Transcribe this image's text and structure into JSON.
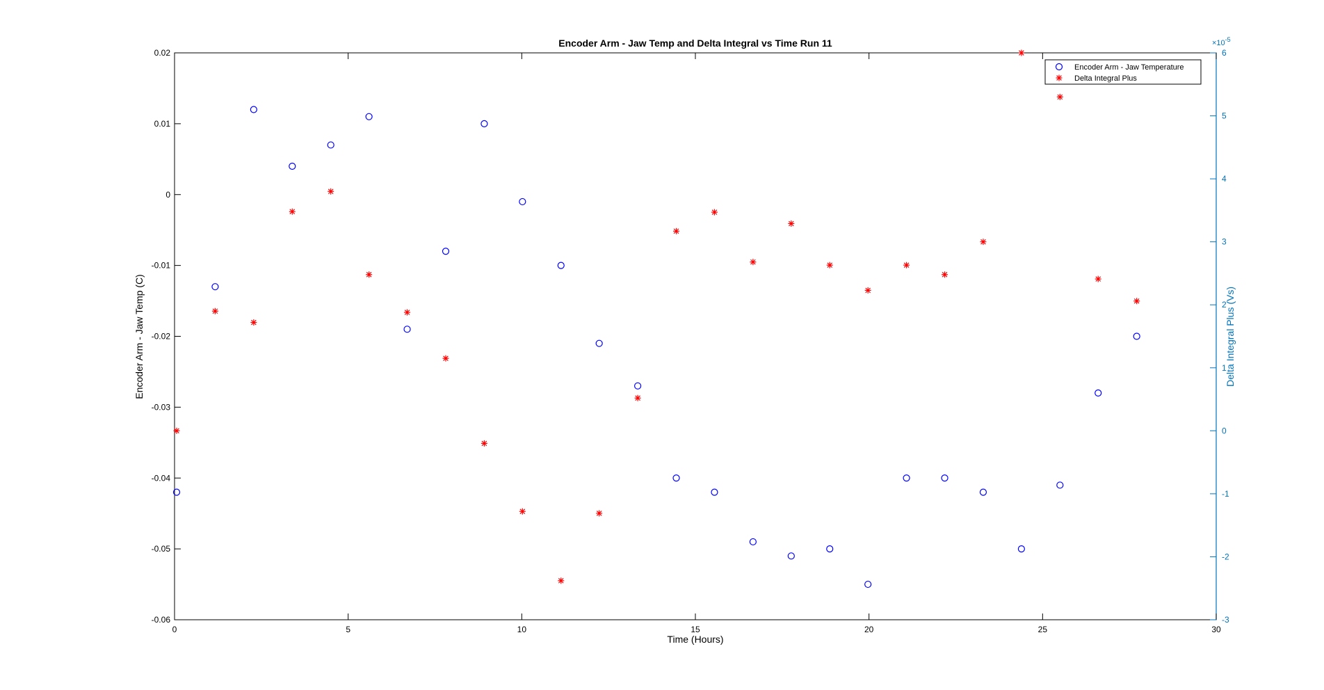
{
  "figure": {
    "background": "#ffffff",
    "axes_color": "#000000",
    "right_axis_color": "#0072BD",
    "grid": false
  },
  "chart_data": {
    "type": "scatter",
    "title": "Encoder Arm - Jaw Temp and Delta Integral vs Time Run 11",
    "xlabel": "Time (Hours)",
    "ylabel_left": "Encoder Arm - Jaw Temp (C)",
    "ylabel_right": "Delta Integral Plus (Vs)",
    "right_axis_exponent_label": "×10",
    "right_axis_exponent": "-5",
    "xlim": [
      0,
      30
    ],
    "ylim_left": [
      -0.06,
      0.02
    ],
    "ylim_right": [
      -3,
      6
    ],
    "x_ticks": [
      "0",
      "5",
      "10",
      "15",
      "20",
      "25",
      "30"
    ],
    "y_left_ticks": [
      "-0.06",
      "-0.05",
      "-0.04",
      "-0.03",
      "-0.02",
      "-0.01",
      "0",
      "0.01",
      "0.02"
    ],
    "y_right_ticks": [
      "-3",
      "-2",
      "-1",
      "0",
      "1",
      "2",
      "3",
      "4",
      "5",
      "6"
    ],
    "legend_position": "top-right",
    "series": [
      {
        "name": "Encoder Arm - Jaw Temperature",
        "axis": "left",
        "marker": "circle",
        "color": "#0000FF",
        "x": [
          0.06,
          1.17,
          2.28,
          3.39,
          4.5,
          5.6,
          6.7,
          7.81,
          8.92,
          10.02,
          11.13,
          12.23,
          13.34,
          14.45,
          15.55,
          16.66,
          17.76,
          18.87,
          19.97,
          21.08,
          22.18,
          23.29,
          24.39,
          25.5,
          26.6,
          27.71
        ],
        "y": [
          -0.042,
          -0.013,
          0.012,
          0.004,
          0.007,
          0.011,
          -0.019,
          -0.008,
          0.01,
          -0.001,
          -0.01,
          -0.021,
          -0.027,
          -0.04,
          -0.042,
          -0.049,
          -0.051,
          -0.05,
          -0.055,
          -0.04,
          -0.04,
          -0.042,
          -0.05,
          -0.041,
          -0.028,
          -0.02
        ]
      },
      {
        "name": "Delta Integral Plus",
        "axis": "right",
        "marker": "asterisk",
        "color": "#FF0000",
        "x": [
          0.06,
          1.17,
          2.28,
          3.39,
          4.5,
          5.6,
          6.7,
          7.81,
          8.92,
          10.02,
          11.13,
          12.23,
          13.34,
          14.45,
          15.55,
          16.66,
          17.76,
          18.87,
          19.97,
          21.08,
          22.18,
          23.29,
          24.39,
          25.5,
          26.6,
          27.71
        ],
        "y": [
          0.0,
          1.9,
          1.72,
          3.48,
          3.8,
          2.48,
          1.88,
          1.15,
          -0.2,
          -1.28,
          -2.38,
          -1.31,
          0.52,
          3.17,
          3.47,
          2.68,
          3.29,
          2.63,
          2.23,
          2.63,
          2.48,
          3.0,
          6.0,
          5.3,
          2.41,
          2.06
        ]
      }
    ]
  }
}
